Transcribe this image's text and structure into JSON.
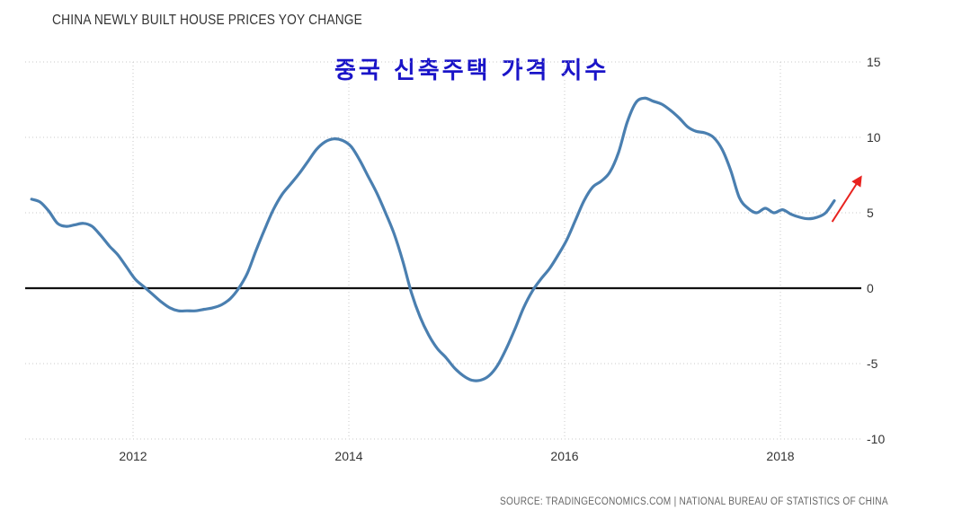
{
  "chart_data": {
    "type": "line",
    "title": "CHINA NEWLY BUILT HOUSE PRICES YOY CHANGE",
    "subtitle": "중국 신축주택 가격 지수",
    "source": "SOURCE: TRADINGECONOMICS.COM | NATIONAL BUREAU OF STATISTICS OF CHINA",
    "xlabel": "",
    "ylabel": "",
    "xlim": [
      2011.0,
      2018.75
    ],
    "ylim": [
      -10,
      15
    ],
    "x_ticks": [
      2012,
      2014,
      2016,
      2018
    ],
    "x_tick_labels": [
      "2012",
      "2014",
      "2016",
      "2018"
    ],
    "y_ticks": [
      15,
      10,
      5,
      0,
      -5,
      -10
    ],
    "y_tick_labels": [
      "15",
      "10",
      "5",
      "0",
      "-5",
      "-10"
    ],
    "grid": true,
    "reference_line": 0,
    "series": [
      {
        "name": "China Newly Built House Prices YoY Change",
        "color": "#4a7fb0",
        "points": [
          [
            2011.06,
            5.9
          ],
          [
            2011.14,
            5.7
          ],
          [
            2011.22,
            5.1
          ],
          [
            2011.3,
            4.3
          ],
          [
            2011.38,
            4.1
          ],
          [
            2011.46,
            4.2
          ],
          [
            2011.54,
            4.3
          ],
          [
            2011.62,
            4.1
          ],
          [
            2011.7,
            3.5
          ],
          [
            2011.78,
            2.8
          ],
          [
            2011.86,
            2.2
          ],
          [
            2011.94,
            1.4
          ],
          [
            2012.02,
            0.6
          ],
          [
            2012.1,
            0.1
          ],
          [
            2012.18,
            -0.4
          ],
          [
            2012.26,
            -0.9
          ],
          [
            2012.34,
            -1.3
          ],
          [
            2012.42,
            -1.5
          ],
          [
            2012.5,
            -1.5
          ],
          [
            2012.58,
            -1.5
          ],
          [
            2012.66,
            -1.4
          ],
          [
            2012.74,
            -1.3
          ],
          [
            2012.82,
            -1.1
          ],
          [
            2012.9,
            -0.7
          ],
          [
            2012.98,
            0.0
          ],
          [
            2013.06,
            1.0
          ],
          [
            2013.14,
            2.5
          ],
          [
            2013.22,
            3.9
          ],
          [
            2013.3,
            5.2
          ],
          [
            2013.38,
            6.2
          ],
          [
            2013.46,
            6.9
          ],
          [
            2013.54,
            7.6
          ],
          [
            2013.62,
            8.4
          ],
          [
            2013.7,
            9.2
          ],
          [
            2013.78,
            9.7
          ],
          [
            2013.86,
            9.9
          ],
          [
            2013.94,
            9.8
          ],
          [
            2014.02,
            9.4
          ],
          [
            2014.1,
            8.5
          ],
          [
            2014.18,
            7.4
          ],
          [
            2014.26,
            6.3
          ],
          [
            2014.34,
            5.0
          ],
          [
            2014.42,
            3.6
          ],
          [
            2014.5,
            1.8
          ],
          [
            2014.58,
            -0.3
          ],
          [
            2014.66,
            -1.9
          ],
          [
            2014.74,
            -3.1
          ],
          [
            2014.82,
            -4.0
          ],
          [
            2014.9,
            -4.6
          ],
          [
            2014.98,
            -5.3
          ],
          [
            2015.06,
            -5.8
          ],
          [
            2015.14,
            -6.1
          ],
          [
            2015.22,
            -6.1
          ],
          [
            2015.3,
            -5.8
          ],
          [
            2015.38,
            -5.1
          ],
          [
            2015.46,
            -4.0
          ],
          [
            2015.54,
            -2.7
          ],
          [
            2015.62,
            -1.3
          ],
          [
            2015.7,
            -0.2
          ],
          [
            2015.78,
            0.6
          ],
          [
            2015.86,
            1.3
          ],
          [
            2015.94,
            2.2
          ],
          [
            2016.02,
            3.2
          ],
          [
            2016.1,
            4.5
          ],
          [
            2016.18,
            5.8
          ],
          [
            2016.26,
            6.7
          ],
          [
            2016.34,
            7.1
          ],
          [
            2016.42,
            7.7
          ],
          [
            2016.5,
            9.0
          ],
          [
            2016.58,
            11.0
          ],
          [
            2016.66,
            12.3
          ],
          [
            2016.74,
            12.6
          ],
          [
            2016.82,
            12.4
          ],
          [
            2016.9,
            12.2
          ],
          [
            2016.98,
            11.8
          ],
          [
            2017.06,
            11.3
          ],
          [
            2017.14,
            10.7
          ],
          [
            2017.22,
            10.4
          ],
          [
            2017.3,
            10.3
          ],
          [
            2017.38,
            10.0
          ],
          [
            2017.46,
            9.2
          ],
          [
            2017.54,
            7.8
          ],
          [
            2017.62,
            6.0
          ],
          [
            2017.7,
            5.3
          ],
          [
            2017.78,
            5.0
          ],
          [
            2017.86,
            5.3
          ],
          [
            2017.94,
            5.0
          ],
          [
            2018.02,
            5.2
          ],
          [
            2018.1,
            4.9
          ],
          [
            2018.18,
            4.7
          ],
          [
            2018.26,
            4.6
          ],
          [
            2018.34,
            4.7
          ],
          [
            2018.42,
            5.0
          ],
          [
            2018.5,
            5.8
          ]
        ]
      }
    ],
    "annotations": [
      {
        "type": "arrow",
        "color": "#e8231f",
        "from": [
          2018.48,
          4.4
        ],
        "to": [
          2018.74,
          7.3
        ]
      }
    ]
  }
}
